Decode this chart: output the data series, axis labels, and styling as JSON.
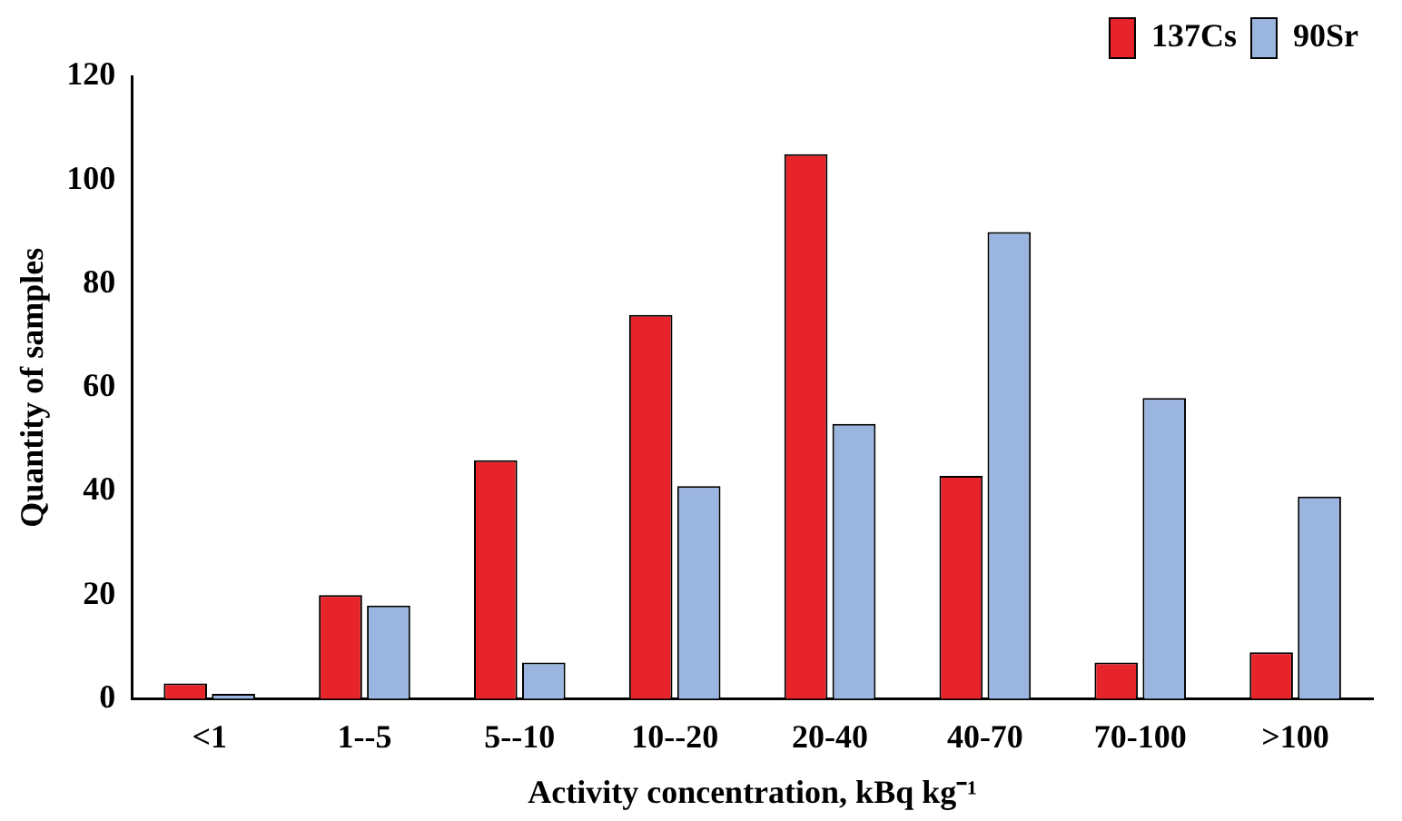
{
  "chart_data": {
    "type": "bar",
    "xlabel": "Activity concentration, kBq kg⁻¹",
    "ylabel": "Quantity of samples",
    "categories": [
      "<1",
      "1--5",
      "5--10",
      "10--20",
      "20-40",
      "40-70",
      "70-100",
      ">100"
    ],
    "series": [
      {
        "name": "137Cs",
        "color": "#e8242b",
        "values": [
          3,
          20,
          46,
          74,
          105,
          43,
          7,
          9
        ]
      },
      {
        "name": "90Sr",
        "color": "#9ab5df",
        "values": [
          1,
          18,
          7,
          41,
          53,
          90,
          58,
          39
        ]
      }
    ],
    "ylim": [
      0,
      120
    ],
    "yticks": [
      0,
      20,
      40,
      60,
      80,
      100,
      120
    ],
    "grid": false,
    "legend": "top right"
  }
}
